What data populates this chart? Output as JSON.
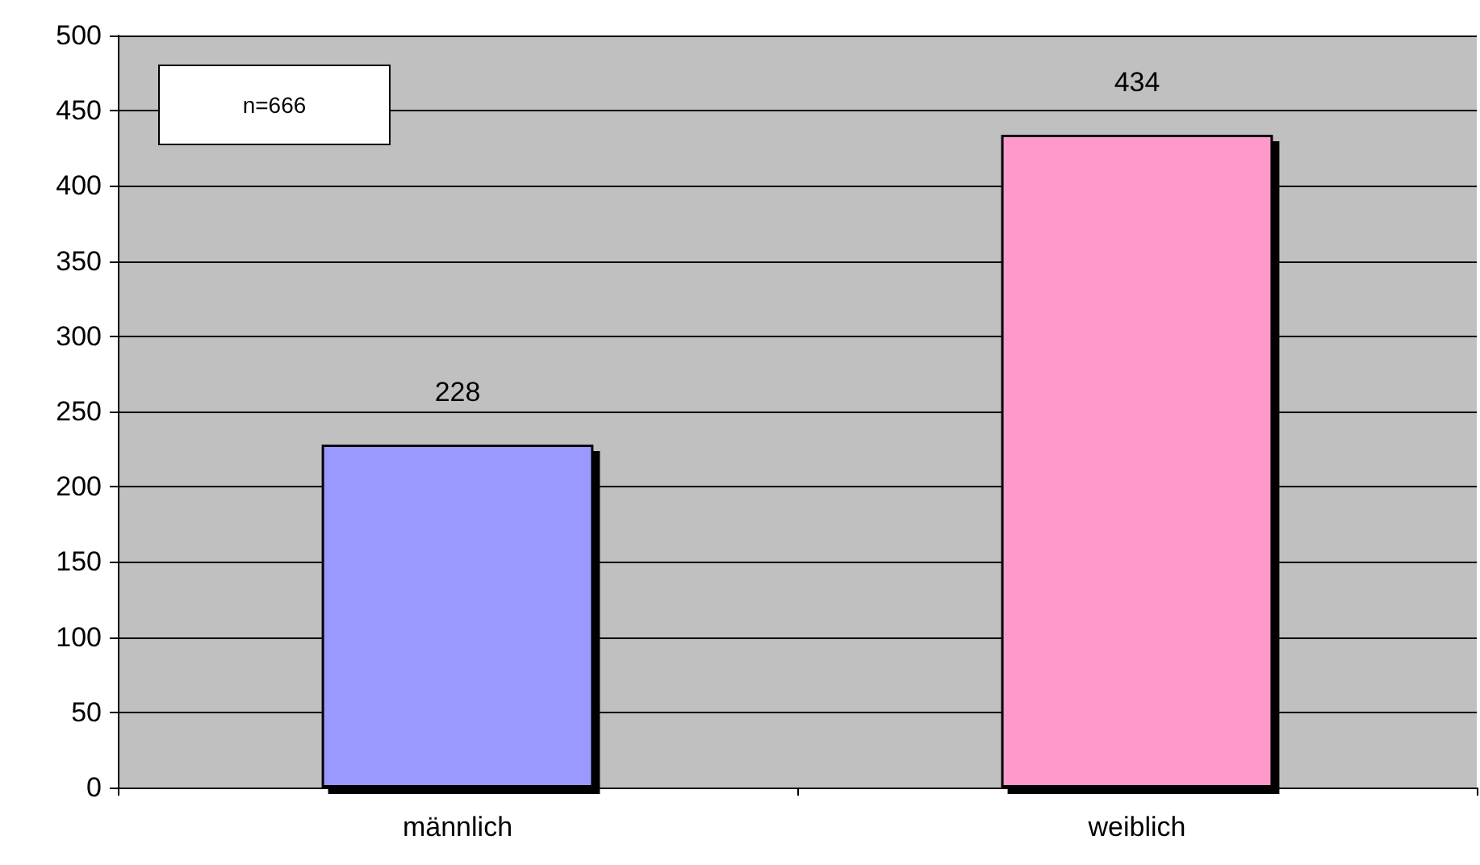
{
  "chart_data": {
    "type": "bar",
    "categories": [
      "männlich",
      "weiblich"
    ],
    "series": [
      {
        "color": "#9999ff",
        "values": [
          228,
          null
        ]
      },
      {
        "color": "#ff99cc",
        "values": [
          null,
          434
        ]
      }
    ],
    "stacked": true,
    "ylim": [
      0,
      500
    ],
    "yticks": [
      0,
      50,
      100,
      150,
      200,
      250,
      300,
      350,
      400,
      450,
      500
    ],
    "grid": "y",
    "data_labels": true,
    "annotations": [
      "n=666"
    ]
  }
}
